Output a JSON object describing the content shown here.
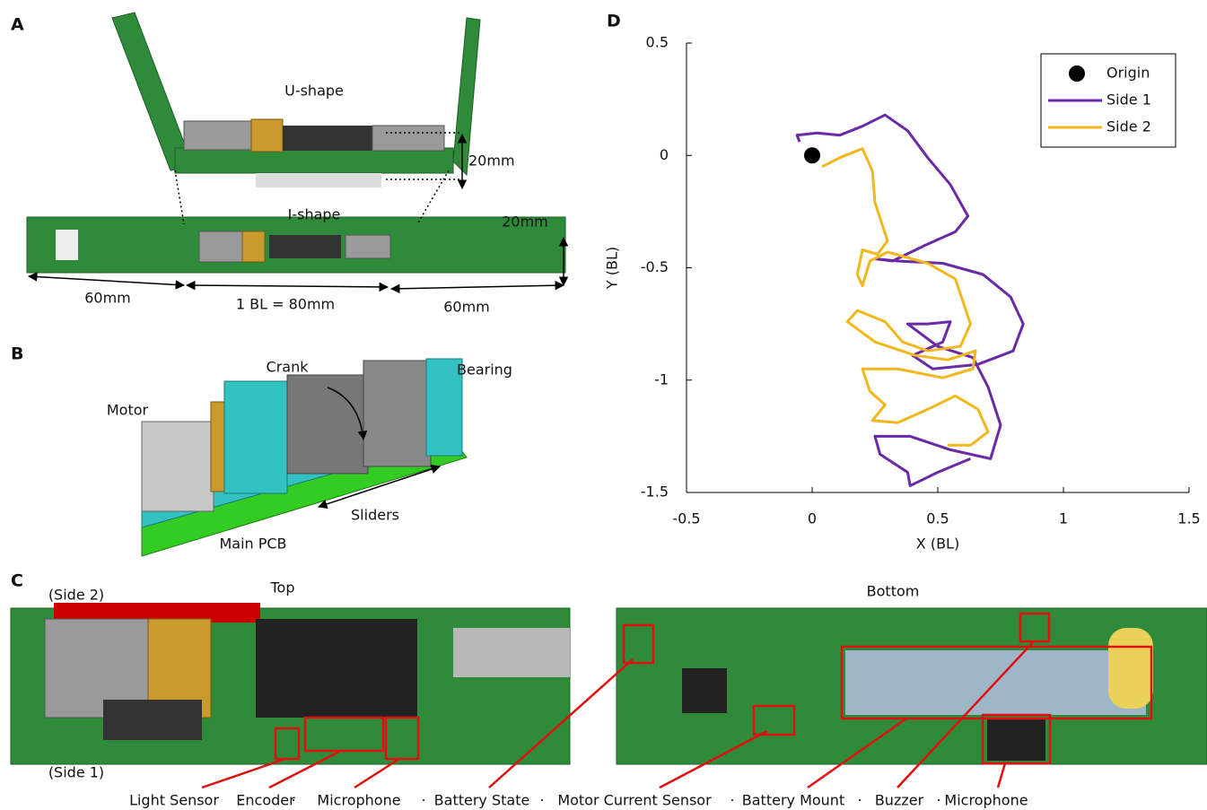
{
  "panels": [
    {
      "letter": "A",
      "labels": [
        "U-shape",
        "20mm",
        "I-shape",
        "20mm",
        "60mm",
        "1 BL = 80mm",
        "60mm"
      ]
    },
    {
      "letter": "B",
      "labels": [
        "Crank",
        "Bearing",
        "Motor",
        "Sliders",
        "Main PCB"
      ]
    },
    {
      "letter": "C",
      "labels": [
        "Top",
        "Bottom",
        "(Side 2)",
        "(Side 1)"
      ],
      "components": [
        "Light Sensor",
        "Encoder",
        "Microphone",
        "Battery State",
        "Motor Current Sensor",
        "Battery Mount",
        "Buzzer",
        "Microphone"
      ],
      "separator": "·"
    },
    {
      "letter": "D"
    }
  ],
  "chart_data": {
    "type": "line",
    "xlabel": "X (BL)",
    "ylabel": "Y (BL)",
    "xlim": [
      -0.5,
      1.5
    ],
    "ylim": [
      -1.5,
      0.5
    ],
    "xticks": [
      -0.5,
      0,
      0.5,
      1,
      1.5
    ],
    "yticks": [
      -1.5,
      -1,
      -0.5,
      0,
      0.5
    ],
    "legend": "upper right",
    "markers": [
      {
        "name": "Origin",
        "color": "#000000",
        "x": 0,
        "y": 0
      }
    ],
    "series": [
      {
        "name": "Side 1",
        "color": "#6a2aa8",
        "x": [
          -0.05,
          -0.06,
          0.02,
          0.11,
          0.2,
          0.29,
          0.38,
          0.46,
          0.55,
          0.62,
          0.57,
          0.45,
          0.32,
          0.25,
          0.34,
          0.52,
          0.68,
          0.79,
          0.84,
          0.8,
          0.66,
          0.48,
          0.4,
          0.52,
          0.55,
          0.46,
          0.38,
          0.5,
          0.64,
          0.7,
          0.75,
          0.71,
          0.55,
          0.39,
          0.25,
          0.27,
          0.38,
          0.39,
          0.5,
          0.63
        ],
        "values": [
          0.06,
          0.09,
          0.1,
          0.09,
          0.13,
          0.18,
          0.11,
          -0.01,
          -0.13,
          -0.27,
          -0.34,
          -0.4,
          -0.47,
          -0.46,
          -0.47,
          -0.48,
          -0.53,
          -0.63,
          -0.75,
          -0.87,
          -0.93,
          -0.95,
          -0.89,
          -0.83,
          -0.74,
          -0.75,
          -0.75,
          -0.85,
          -0.9,
          -1.03,
          -1.2,
          -1.35,
          -1.31,
          -1.25,
          -1.25,
          -1.33,
          -1.41,
          -1.47,
          -1.41,
          -1.35
        ]
      },
      {
        "name": "Side 2",
        "color": "#f2b71c",
        "x": [
          0.04,
          0.11,
          0.2,
          0.24,
          0.25,
          0.3,
          0.26,
          0.2,
          0.18,
          0.2,
          0.23,
          0.3,
          0.46,
          0.57,
          0.63,
          0.59,
          0.46,
          0.36,
          0.29,
          0.18,
          0.14,
          0.25,
          0.41,
          0.54,
          0.65,
          0.64,
          0.52,
          0.34,
          0.2,
          0.23,
          0.29,
          0.24,
          0.34,
          0.46,
          0.57,
          0.66,
          0.7,
          0.63,
          0.54
        ],
        "values": [
          -0.05,
          -0.01,
          0.03,
          -0.07,
          -0.21,
          -0.38,
          -0.44,
          -0.42,
          -0.53,
          -0.58,
          -0.47,
          -0.43,
          -0.48,
          -0.55,
          -0.75,
          -0.85,
          -0.87,
          -0.83,
          -0.74,
          -0.69,
          -0.74,
          -0.83,
          -0.89,
          -0.91,
          -0.87,
          -0.95,
          -0.99,
          -0.95,
          -0.95,
          -1.05,
          -1.11,
          -1.18,
          -1.19,
          -1.13,
          -1.07,
          -1.13,
          -1.23,
          -1.29,
          -1.29
        ]
      }
    ]
  }
}
